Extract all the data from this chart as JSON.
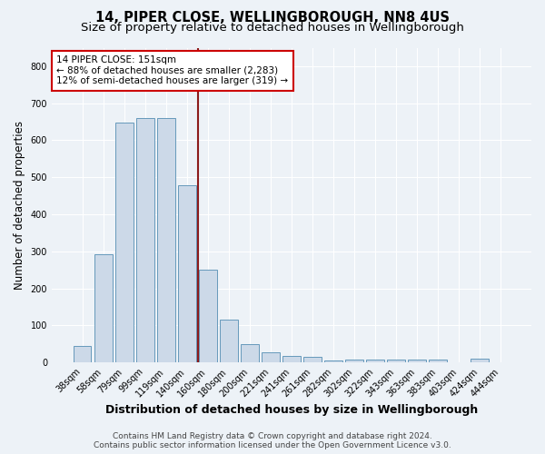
{
  "title": "14, PIPER CLOSE, WELLINGBOROUGH, NN8 4US",
  "subtitle": "Size of property relative to detached houses in Wellingborough",
  "xlabel": "Distribution of detached houses by size in Wellingborough",
  "ylabel": "Number of detached properties",
  "categories": [
    "38sqm",
    "58sqm",
    "79sqm",
    "99sqm",
    "119sqm",
    "140sqm",
    "160sqm",
    "180sqm",
    "200sqm",
    "221sqm",
    "241sqm",
    "261sqm",
    "282sqm",
    "302sqm",
    "322sqm",
    "343sqm",
    "363sqm",
    "383sqm",
    "403sqm",
    "424sqm",
    "444sqm"
  ],
  "values": [
    45,
    293,
    648,
    660,
    660,
    478,
    250,
    115,
    50,
    27,
    17,
    15,
    6,
    7,
    8,
    8,
    8,
    8,
    1,
    9,
    1
  ],
  "bar_color": "#ccd9e8",
  "bar_edge_color": "#6699bb",
  "vline_x": 5.55,
  "vline_color": "#8b1a1a",
  "annotation_text": "14 PIPER CLOSE: 151sqm\n← 88% of detached houses are smaller (2,283)\n12% of semi-detached houses are larger (319) →",
  "annotation_box_color": "white",
  "annotation_box_edge_color": "#cc0000",
  "ylim": [
    0,
    850
  ],
  "yticks": [
    0,
    100,
    200,
    300,
    400,
    500,
    600,
    700,
    800
  ],
  "footer_line1": "Contains HM Land Registry data © Crown copyright and database right 2024.",
  "footer_line2": "Contains public sector information licensed under the Open Government Licence v3.0.",
  "bg_color": "#edf2f7",
  "plot_bg_color": "#edf2f7",
  "title_fontsize": 10.5,
  "subtitle_fontsize": 9.5,
  "xlabel_fontsize": 9,
  "ylabel_fontsize": 8.5,
  "tick_fontsize": 7,
  "annotation_fontsize": 7.5,
  "footer_fontsize": 6.5
}
